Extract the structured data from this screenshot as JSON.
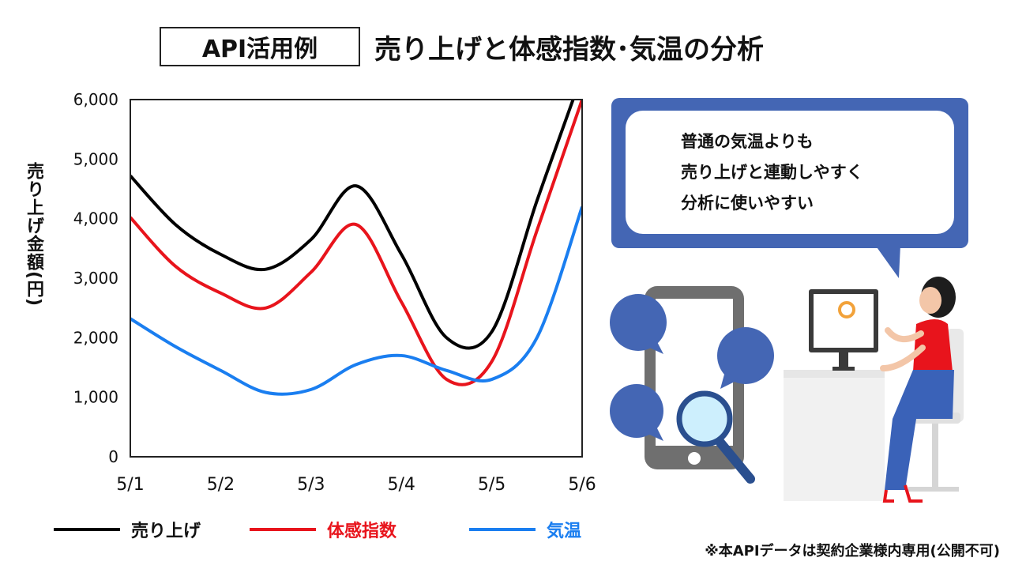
{
  "header": {
    "tag": "API活用例",
    "title": "売り上げと体感指数･気温の分析"
  },
  "chart_data": {
    "type": "line",
    "categories": [
      "5/1",
      "5/2",
      "5/3",
      "5/4",
      "5/5",
      "5/6"
    ],
    "x": [
      1,
      2,
      3,
      4,
      5,
      6
    ],
    "ylabel": "売り上げ金額(円)",
    "ylim": [
      0,
      6000
    ],
    "yticks": [
      0,
      1000,
      2000,
      3000,
      4000,
      5000,
      6000
    ],
    "ytick_labels": [
      "0",
      "1,000",
      "2,000",
      "3,000",
      "4,000",
      "5,000",
      "6,000"
    ],
    "grid": false,
    "legend_position": "bottom",
    "series": [
      {
        "name": "売り上げ",
        "color": "#000000",
        "points": [
          [
            1,
            4720
          ],
          [
            1.5,
            3900
          ],
          [
            2,
            3400
          ],
          [
            2.5,
            3150
          ],
          [
            3,
            3650
          ],
          [
            3.5,
            4550
          ],
          [
            4,
            3400
          ],
          [
            4.5,
            2000
          ],
          [
            5,
            2100
          ],
          [
            5.5,
            4300
          ],
          [
            5.9,
            6000
          ]
        ]
      },
      {
        "name": "体感指数",
        "color": "#e8141c",
        "points": [
          [
            1,
            4020
          ],
          [
            1.5,
            3200
          ],
          [
            2,
            2750
          ],
          [
            2.5,
            2500
          ],
          [
            3,
            3100
          ],
          [
            3.5,
            3900
          ],
          [
            4,
            2600
          ],
          [
            4.5,
            1300
          ],
          [
            5,
            1600
          ],
          [
            5.5,
            3800
          ],
          [
            6,
            6000
          ]
        ]
      },
      {
        "name": "気温",
        "color": "#1a7ef0",
        "points": [
          [
            1,
            2320
          ],
          [
            1.5,
            1850
          ],
          [
            2,
            1450
          ],
          [
            2.5,
            1080
          ],
          [
            3,
            1130
          ],
          [
            3.5,
            1550
          ],
          [
            4,
            1700
          ],
          [
            4.5,
            1450
          ],
          [
            5,
            1300
          ],
          [
            5.5,
            2000
          ],
          [
            6,
            4200
          ]
        ]
      }
    ]
  },
  "callout": {
    "lines": [
      "普通の気温よりも",
      "売り上げと連動しやすく",
      "分析に使いやすい"
    ]
  },
  "footnote": "※本APIデータは契約企業様内専用(公開不可)",
  "colors": {
    "accent": "#4466b4",
    "skin": "#f3c6a8",
    "shirt": "#e8141c",
    "skirt": "#3a62b8"
  }
}
